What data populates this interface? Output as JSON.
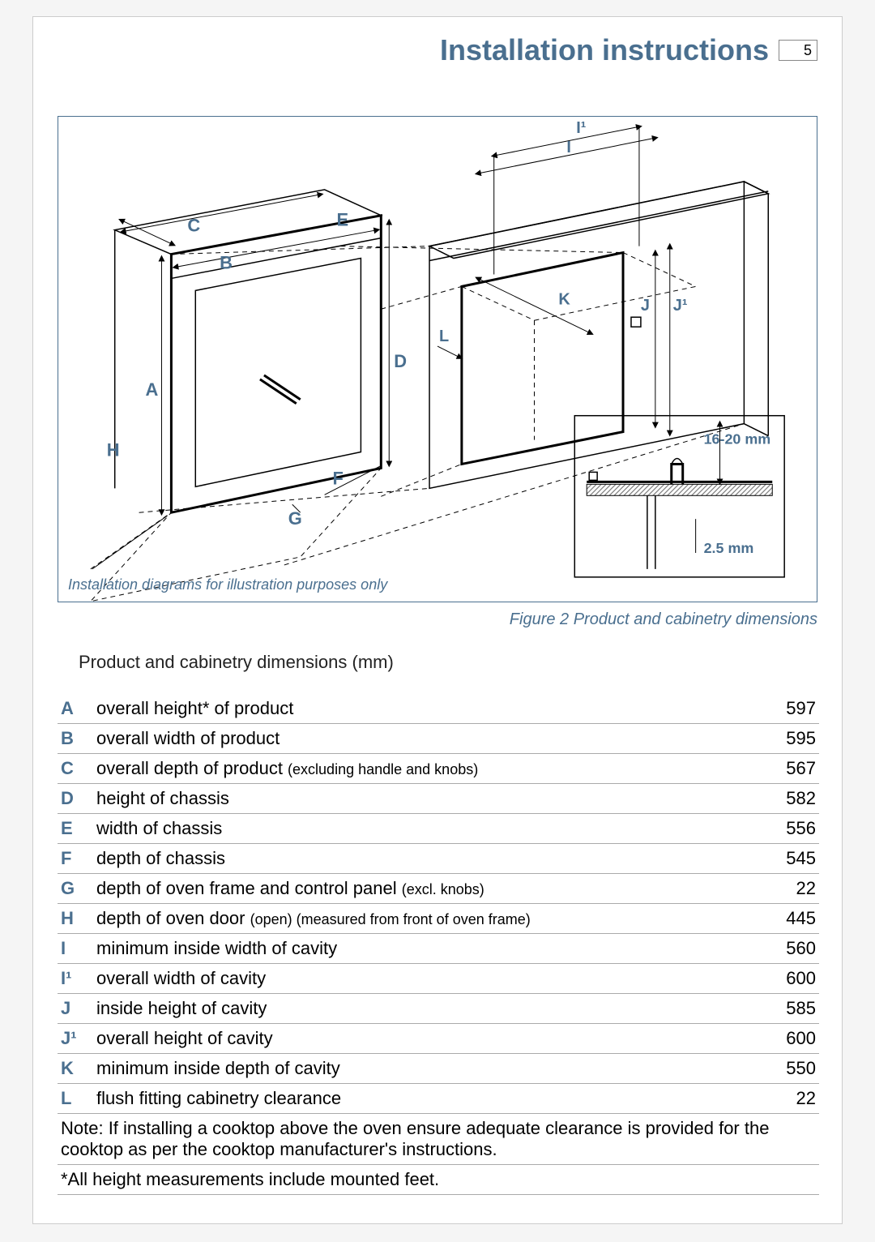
{
  "header": {
    "title": "Installation instructions",
    "page_number": "5"
  },
  "diagram": {
    "caption_inside": "Installation diagrams for illustration purposes only",
    "figure_caption": "Figure 2 Product and cabinetry dimensions",
    "labels": {
      "A": "A",
      "B": "B",
      "C": "C",
      "D": "D",
      "E": "E",
      "F": "F",
      "G": "G",
      "H": "H",
      "I": "I",
      "Ip": "I¹",
      "J": "J",
      "Jp": "J¹",
      "K": "K",
      "L": "L",
      "inset_top": "16-20 mm",
      "inset_bottom": "2.5 mm"
    }
  },
  "table": {
    "title": "Product and cabinetry dimensions (mm)",
    "rows": [
      {
        "key": "A",
        "desc": "overall height* of product",
        "sub": "",
        "val": "597"
      },
      {
        "key": "B",
        "desc": "overall width of product",
        "sub": "",
        "val": "595"
      },
      {
        "key": "C",
        "desc": "overall depth of product ",
        "sub": "(excluding handle and knobs)",
        "val": "567"
      },
      {
        "key": "D",
        "desc": "height of chassis",
        "sub": "",
        "val": "582"
      },
      {
        "key": "E",
        "desc": "width of chassis",
        "sub": "",
        "val": "556"
      },
      {
        "key": "F",
        "desc": "depth of chassis",
        "sub": "",
        "val": "545"
      },
      {
        "key": "G",
        "desc": "depth of oven frame and control panel ",
        "sub": "(excl. knobs)",
        "val": "22"
      },
      {
        "key": "H",
        "desc": "depth of oven door ",
        "sub": "(open) (measured from front of oven frame)",
        "val": "445"
      },
      {
        "key": "I",
        "desc": "minimum inside width of cavity",
        "sub": "",
        "val": "560"
      },
      {
        "key": "I¹",
        "desc": "overall width of cavity",
        "sub": "",
        "val": "600"
      },
      {
        "key": "J",
        "desc": "inside height of cavity",
        "sub": "",
        "val": "585"
      },
      {
        "key": "J¹",
        "desc": "overall height of cavity",
        "sub": "",
        "val": "600"
      },
      {
        "key": "K",
        "desc": "minimum inside depth of cavity",
        "sub": "",
        "val": "550"
      },
      {
        "key": "L",
        "desc": "flush fitting cabinetry clearance",
        "sub": "",
        "val": "22"
      }
    ],
    "note": "Note: If installing a cooktop above the oven ensure adequate clearance is provided for the cooktop as per the cooktop manufacturer's instructions.",
    "footnote": "*All height measurements include mounted feet."
  }
}
